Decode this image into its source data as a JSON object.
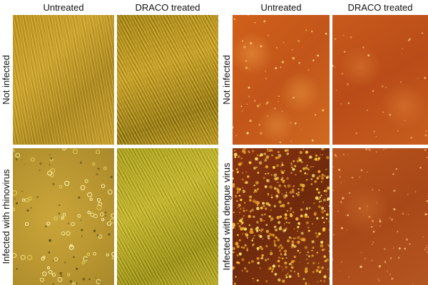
{
  "figure": {
    "left": {
      "col_labels": [
        "Untreated",
        "DRACO treated"
      ],
      "row_labels": [
        "Not infected",
        "Infected with rhinovirus"
      ]
    },
    "right": {
      "col_labels": [
        "Untreated",
        "DRACO treated"
      ],
      "row_labels": [
        "Not infected",
        "Infected with dengue virus"
      ]
    }
  },
  "colors": {
    "fibroblast_gold": "#c09a24",
    "rhino_background": "#b89530",
    "cell_orange": "#c85a1c",
    "dengue_bright": "#f0b030"
  }
}
